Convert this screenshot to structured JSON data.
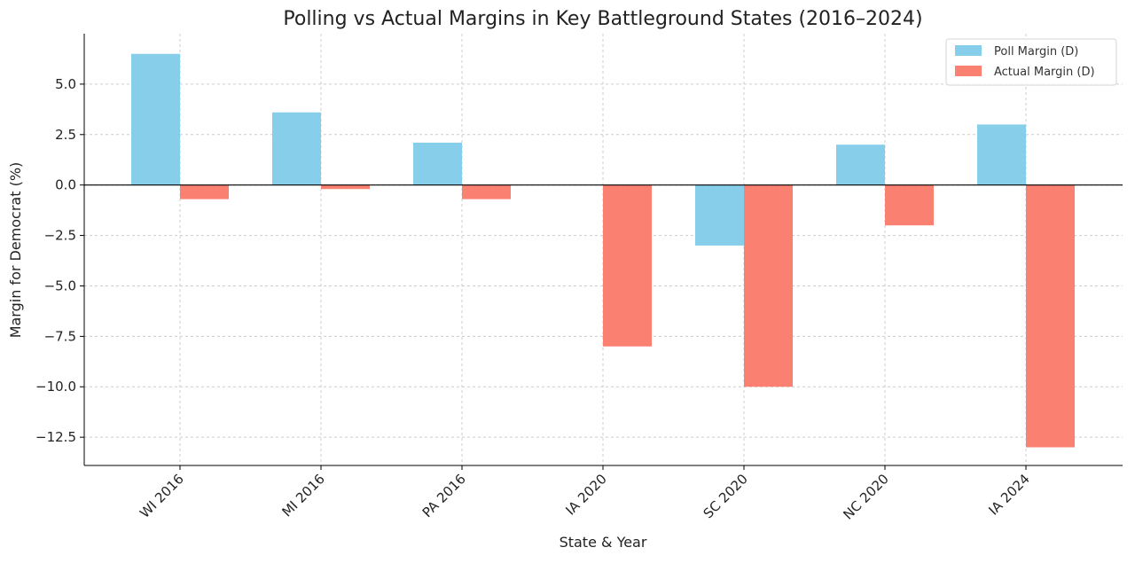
{
  "chart_data": {
    "type": "bar",
    "title": "Polling vs Actual Margins in Key Battleground States (2016–2024)",
    "xlabel": "State & Year",
    "ylabel": "Margin for Democrat (%)",
    "categories": [
      "WI 2016",
      "MI 2016",
      "PA 2016",
      "IA 2020",
      "SC 2020",
      "NC 2020",
      "IA 2024"
    ],
    "series": [
      {
        "name": "Poll Margin (D)",
        "values": [
          6.5,
          3.6,
          2.1,
          0.0,
          -3.0,
          2.0,
          3.0
        ],
        "color": "#87CEEB"
      },
      {
        "name": "Actual Margin (D)",
        "values": [
          -0.7,
          -0.2,
          -0.7,
          -8.0,
          -10.0,
          -2.0,
          -13.0
        ],
        "color": "#FA8072"
      }
    ],
    "ylim": [
      -13.9,
      7.5
    ],
    "yticks": [
      5.0,
      2.5,
      0.0,
      -2.5,
      -5.0,
      -7.5,
      -10.0,
      -12.5
    ],
    "ytick_labels": [
      "5.0",
      "2.5",
      "0.0",
      "−2.5",
      "−5.0",
      "−7.5",
      "−10.0",
      "−12.5"
    ],
    "grid": true,
    "legend_position": "top-right"
  }
}
